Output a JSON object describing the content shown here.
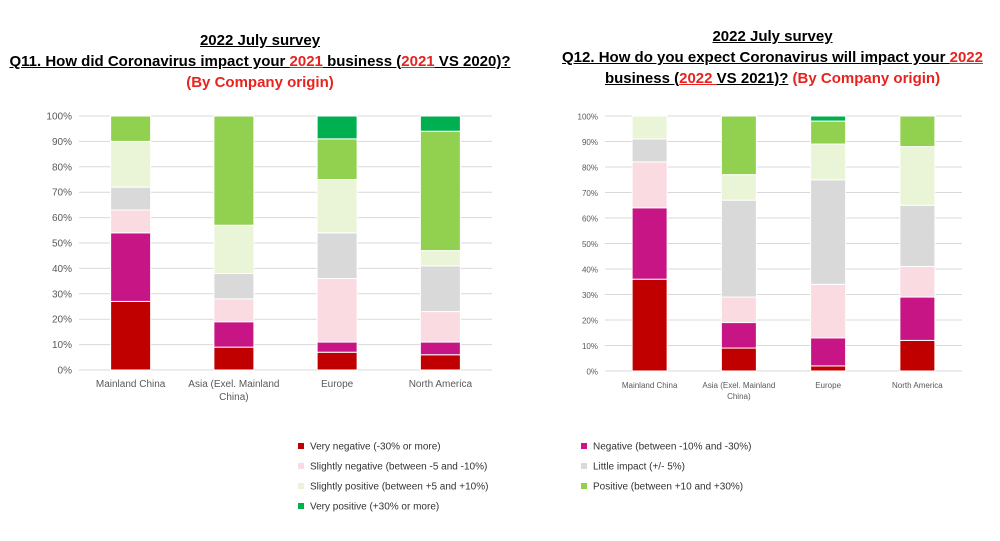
{
  "colors": {
    "very_negative": "#c00000",
    "negative": "#c71585",
    "slightly_negative": "#fadbe1",
    "little_impact": "#d9d9d9",
    "slightly_positive": "#e9f5d6",
    "positive": "#92d050",
    "very_positive": "#00b050",
    "title_red": "#e8231f"
  },
  "legend": [
    {
      "key": "very_negative",
      "label": "Very negative (-30% or more)"
    },
    {
      "key": "negative",
      "label": "Negative (between -10% and -30%)"
    },
    {
      "key": "slightly_negative",
      "label": "Slightly negative (between -5 and -10%)"
    },
    {
      "key": "little_impact",
      "label": "Little impact (+/- 5%)"
    },
    {
      "key": "slightly_positive",
      "label": "Slightly positive (between +5 and +10%)"
    },
    {
      "key": "positive",
      "label": "Positive (between +10 and +30%)"
    },
    {
      "key": "very_positive",
      "label": "Very positive (+30% or more)"
    }
  ],
  "titles": {
    "q11": {
      "line1": "2022 July survey",
      "line2_a": "Q11. How did Coronavirus impact your ",
      "line2_b": "2021",
      "line2_c": " business (",
      "line2_d": "2021",
      "line2_e": " VS 2020)?",
      "line3": "(By Company origin)"
    },
    "q12": {
      "line1": "2022 July survey",
      "line2_a": "Q12. How do you expect Coronavirus will impact your ",
      "line2_b": "2022",
      "line3_a": "business (",
      "line3_b": "2022 ",
      "line3_c": "VS 2021)?",
      "line3_d": "  (By Company origin)"
    }
  },
  "chart_data": [
    {
      "id": "q11",
      "type": "bar",
      "stacked": true,
      "ylim": [
        0,
        100
      ],
      "yticks": [
        "0%",
        "10%",
        "20%",
        "30%",
        "40%",
        "50%",
        "60%",
        "70%",
        "80%",
        "90%",
        "100%"
      ],
      "categories": [
        [
          "Mainland China"
        ],
        [
          "Asia (Exel. Mainland",
          "China)"
        ],
        [
          "Europe"
        ],
        [
          "North America"
        ]
      ],
      "series": [
        {
          "key": "very_negative",
          "name": "Very negative (-30% or more)",
          "values": [
            27,
            9,
            7,
            6
          ]
        },
        {
          "key": "negative",
          "name": "Negative (between -10% and -30%)",
          "values": [
            27,
            10,
            4,
            5
          ]
        },
        {
          "key": "slightly_negative",
          "name": "Slightly negative (between -5 and -10%)",
          "values": [
            9,
            9,
            25,
            12
          ]
        },
        {
          "key": "little_impact",
          "name": "Little impact (+/- 5%)",
          "values": [
            9,
            10,
            18,
            18
          ]
        },
        {
          "key": "slightly_positive",
          "name": "Slightly positive (between +5 and +10%)",
          "values": [
            18,
            19,
            21,
            6
          ]
        },
        {
          "key": "positive",
          "name": "Positive (between +10 and +30%)",
          "values": [
            10,
            43,
            16,
            47
          ]
        },
        {
          "key": "very_positive",
          "name": "Very positive (+30% or more)",
          "values": [
            0,
            0,
            9,
            6
          ]
        }
      ]
    },
    {
      "id": "q12",
      "type": "bar",
      "stacked": true,
      "ylim": [
        0,
        100
      ],
      "yticks": [
        "0%",
        "10%",
        "20%",
        "30%",
        "40%",
        "50%",
        "60%",
        "70%",
        "80%",
        "90%",
        "100%"
      ],
      "categories": [
        [
          "Mainland China"
        ],
        [
          "Asia (Exel. Mainland",
          "China)"
        ],
        [
          "Europe"
        ],
        [
          "North America"
        ]
      ],
      "series": [
        {
          "key": "very_negative",
          "name": "Very negative (-30% or more)",
          "values": [
            36,
            9,
            2,
            12
          ]
        },
        {
          "key": "negative",
          "name": "Negative (between -10% and -30%)",
          "values": [
            28,
            10,
            11,
            17
          ]
        },
        {
          "key": "slightly_negative",
          "name": "Slightly negative (between -5 and -10%)",
          "values": [
            18,
            10,
            21,
            12
          ]
        },
        {
          "key": "little_impact",
          "name": "Little impact (+/- 5%)",
          "values": [
            9,
            38,
            41,
            24
          ]
        },
        {
          "key": "slightly_positive",
          "name": "Slightly positive (between +5 and +10%)",
          "values": [
            9,
            10,
            14,
            23
          ]
        },
        {
          "key": "positive",
          "name": "Positive (between +10 and +30%)",
          "values": [
            0,
            23,
            9,
            12
          ]
        },
        {
          "key": "very_positive",
          "name": "Very positive (+30% or more)",
          "values": [
            0,
            0,
            2,
            0
          ]
        }
      ]
    }
  ]
}
